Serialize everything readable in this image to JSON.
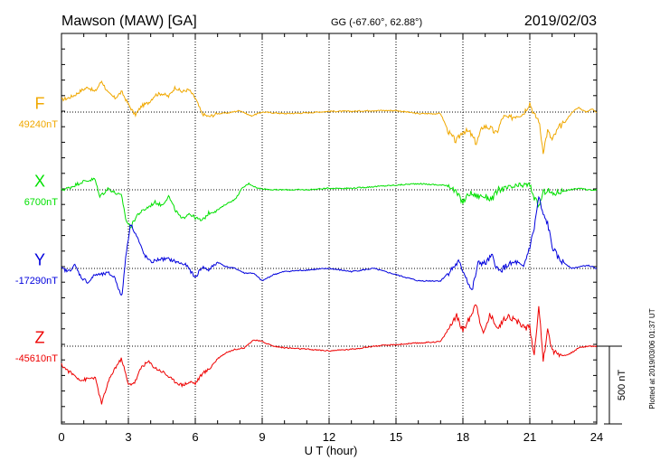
{
  "chart_data": {
    "type": "line",
    "title": "Mawson (MAW)  [GA]",
    "coords": "GG (-67.60°,  62.88°)",
    "date": "2019/02/03",
    "xlabel": "U T (hour)",
    "xlim": [
      0,
      24
    ],
    "xticks": [
      "0",
      "3",
      "6",
      "9",
      "12",
      "15",
      "18",
      "21",
      "24"
    ],
    "grid": true,
    "scale_bar": "500 nT",
    "plotted_note": "Plotted at 2019/03/06 01:37  UT",
    "series": [
      {
        "name": "F",
        "baseline": "49240nT",
        "color": "#f0a800",
        "x": [
          0,
          0.3,
          0.6,
          0.9,
          1.2,
          1.5,
          1.8,
          2.1,
          2.4,
          2.7,
          3.0,
          3.3,
          3.6,
          3.9,
          4.2,
          4.5,
          4.8,
          5.1,
          5.4,
          5.7,
          6.0,
          6.3,
          6.6,
          7.0,
          7.5,
          8.0,
          8.5,
          9.0,
          10,
          11,
          12,
          13,
          14,
          15,
          16,
          17,
          17.4,
          17.7,
          18.0,
          18.3,
          18.6,
          18.9,
          19.2,
          19.5,
          19.8,
          20.1,
          20.4,
          20.7,
          21.0,
          21.2,
          21.4,
          21.6,
          21.8,
          22.0,
          22.3,
          22.6,
          22.9,
          23.2,
          23.5,
          23.8,
          24.0
        ],
        "y": [
          80,
          90,
          110,
          140,
          160,
          130,
          200,
          120,
          90,
          130,
          50,
          -20,
          40,
          60,
          110,
          120,
          100,
          160,
          130,
          145,
          90,
          -10,
          -30,
          -10,
          -5,
          10,
          -25,
          0,
          -10,
          -5,
          5,
          5,
          10,
          10,
          -10,
          -10,
          -140,
          -190,
          -120,
          -130,
          -200,
          -90,
          -100,
          -140,
          -30,
          -40,
          -20,
          -10,
          60,
          -20,
          -50,
          -250,
          -120,
          -180,
          -100,
          -60,
          0,
          30,
          0,
          20,
          0
        ]
      },
      {
        "name": "X",
        "baseline": "6700nT",
        "color": "#00e000",
        "x": [
          0,
          0.3,
          0.6,
          0.9,
          1.2,
          1.5,
          1.7,
          1.9,
          2.1,
          2.4,
          2.7,
          2.9,
          3.1,
          3.4,
          3.8,
          4.2,
          4.5,
          4.8,
          5.1,
          5.4,
          5.7,
          6.0,
          6.3,
          6.6,
          7.0,
          7.4,
          7.8,
          8.1,
          8.4,
          8.8,
          9.5,
          10,
          11,
          12,
          13,
          14,
          15,
          16,
          17,
          17.4,
          17.7,
          18.0,
          18.3,
          18.6,
          18.9,
          19.3,
          19.6,
          20.0,
          20.4,
          20.7,
          21.0,
          21.2,
          21.4,
          21.6,
          21.8,
          22.0,
          22.4,
          22.8,
          23.2,
          23.6,
          24.0
        ],
        "y": [
          0,
          10,
          30,
          50,
          60,
          70,
          -40,
          -20,
          10,
          -20,
          -40,
          -200,
          -240,
          -160,
          -120,
          -80,
          -100,
          -40,
          -130,
          -190,
          -150,
          -180,
          -200,
          -150,
          -130,
          -90,
          -60,
          10,
          40,
          10,
          0,
          0,
          0,
          10,
          10,
          20,
          30,
          40,
          30,
          30,
          -20,
          -80,
          -20,
          -40,
          -40,
          -60,
          0,
          10,
          20,
          30,
          30,
          -50,
          -110,
          -20,
          0,
          -30,
          -10,
          0,
          10,
          0,
          0
        ]
      },
      {
        "name": "Y",
        "baseline": "-17290nT",
        "color": "#0000dd",
        "x": [
          0,
          0.3,
          0.6,
          0.9,
          1.2,
          1.5,
          1.8,
          2.1,
          2.4,
          2.7,
          2.9,
          3.1,
          3.4,
          3.7,
          4.0,
          4.4,
          4.8,
          5.2,
          5.6,
          6.0,
          6.3,
          6.6,
          7.0,
          7.4,
          7.8,
          8.2,
          8.6,
          9.0,
          9.5,
          10,
          11,
          12,
          13,
          14,
          15,
          16,
          17,
          17.4,
          17.8,
          18.1,
          18.4,
          18.7,
          19.0,
          19.3,
          19.6,
          20.0,
          20.4,
          20.7,
          21.0,
          21.2,
          21.4,
          21.6,
          21.8,
          22.0,
          22.3,
          22.6,
          22.9,
          23.2,
          23.6,
          24.0
        ],
        "y": [
          0,
          -20,
          20,
          -60,
          -90,
          -40,
          -40,
          -30,
          -60,
          -190,
          100,
          290,
          200,
          90,
          40,
          60,
          60,
          40,
          20,
          -60,
          10,
          -10,
          40,
          10,
          0,
          -30,
          -30,
          -80,
          -40,
          -20,
          -10,
          0,
          -20,
          0,
          -40,
          -80,
          -80,
          -20,
          40,
          -40,
          -150,
          40,
          30,
          80,
          -20,
          20,
          40,
          0,
          140,
          260,
          460,
          340,
          290,
          140,
          60,
          30,
          0,
          10,
          20,
          0
        ]
      },
      {
        "name": "Z",
        "baseline": "-45610nT",
        "color": "#ee0000",
        "x": [
          0,
          0.3,
          0.6,
          0.9,
          1.2,
          1.5,
          1.8,
          2.1,
          2.4,
          2.7,
          3.0,
          3.3,
          3.6,
          3.9,
          4.2,
          4.6,
          5.0,
          5.4,
          5.8,
          6.0,
          6.3,
          6.6,
          7.0,
          7.4,
          7.8,
          8.2,
          8.6,
          9.0,
          9.5,
          10,
          11,
          12,
          13,
          14,
          15,
          16,
          17,
          17.4,
          17.7,
          18.0,
          18.3,
          18.6,
          18.9,
          19.2,
          19.6,
          20.0,
          20.4,
          20.8,
          21.0,
          21.2,
          21.4,
          21.6,
          21.8,
          22.0,
          22.3,
          22.6,
          22.9,
          23.2,
          23.6,
          24.0
        ],
        "y": [
          -120,
          -160,
          -190,
          -220,
          -210,
          -200,
          -370,
          -230,
          -140,
          -80,
          -250,
          -230,
          -130,
          -100,
          -140,
          -170,
          -220,
          -250,
          -230,
          -240,
          -180,
          -150,
          -80,
          -40,
          -20,
          -10,
          40,
          30,
          0,
          -10,
          -20,
          -30,
          -20,
          0,
          10,
          20,
          30,
          120,
          200,
          100,
          180,
          280,
          70,
          200,
          120,
          200,
          160,
          120,
          120,
          -60,
          270,
          -100,
          120,
          -30,
          -50,
          -60,
          -40,
          -10,
          0,
          0
        ]
      }
    ]
  }
}
